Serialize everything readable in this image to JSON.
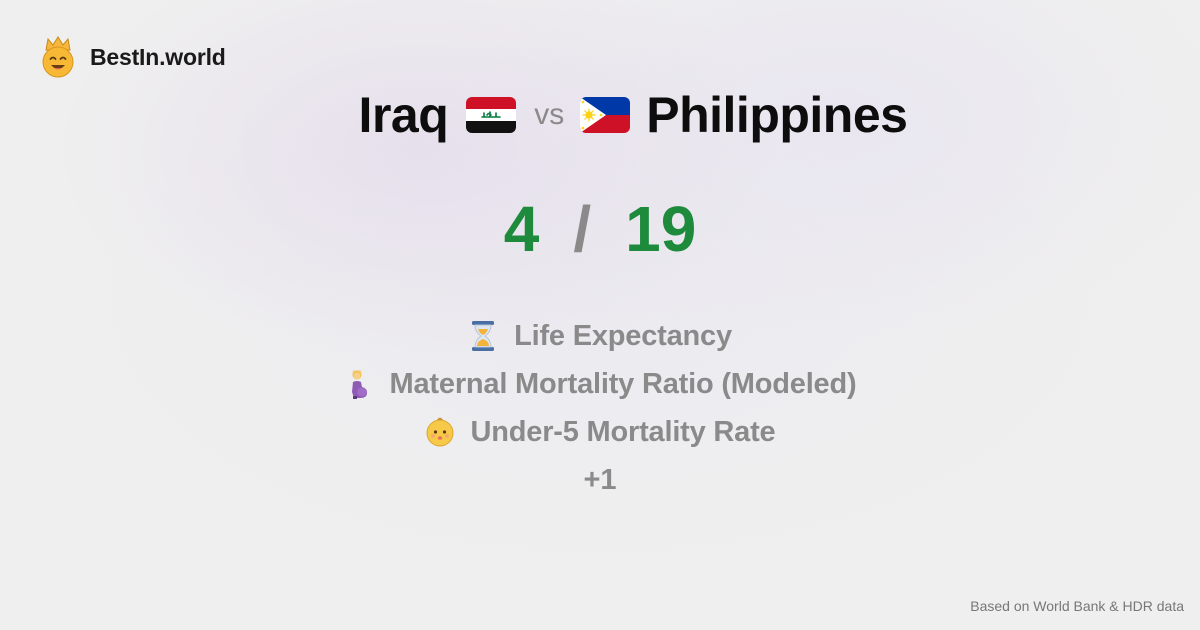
{
  "brand": {
    "name": "BestIn.world",
    "logo_icon": "crowned-smiley-icon"
  },
  "comparison": {
    "left_country": "Iraq",
    "left_flag_icon": "iraq-flag-icon",
    "vs_label": "vs",
    "right_country": "Philippines",
    "right_flag_icon": "philippines-flag-icon"
  },
  "score": {
    "left": "4",
    "separator": "/",
    "right": "19",
    "color": "#1e8a3c"
  },
  "metrics": [
    {
      "icon": "hourglass-icon",
      "label": "Life Expectancy"
    },
    {
      "icon": "pregnant-woman-icon",
      "label": "Maternal Mortality Ratio (Modeled)"
    },
    {
      "icon": "baby-icon",
      "label": "Under-5 Mortality Rate"
    }
  ],
  "more_label": "+1",
  "footer": {
    "source": "Based on World Bank & HDR data"
  }
}
